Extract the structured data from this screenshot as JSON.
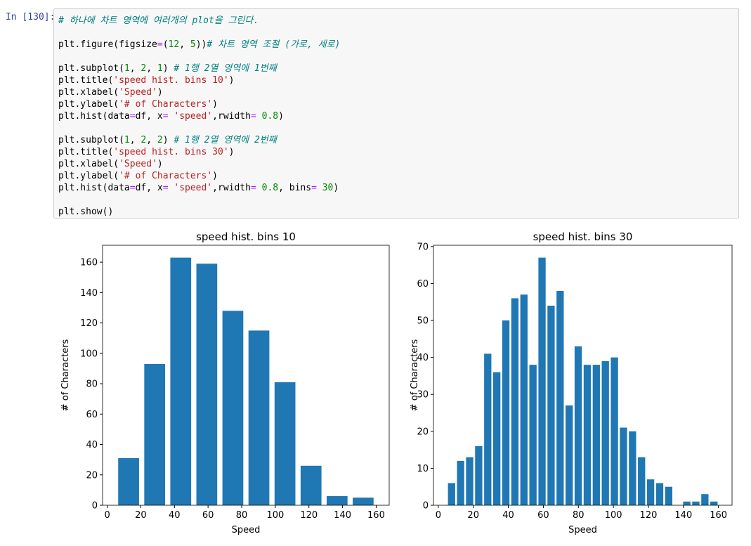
{
  "prompt": "In [130]:",
  "code": [
    [
      "# 하나에 차트 영역에 여러개의 plot을 그린다."
    ],
    [
      "plt.figure(figsize=(12, 5))# 차트 영역 조절 (가로, 세로)"
    ],
    [
      "plt.subplot(1, 2, 1) # 1행 2열 영역에 1번째",
      "plt.title('speed hist. bins 10')",
      "plt.xlabel('Speed')",
      "plt.ylabel('# of Characters')",
      "plt.hist(data=df, x= 'speed',rwidth= 0.8)"
    ],
    [
      "plt.subplot(1, 2, 2) # 1행 2열 영역에 2번째",
      "plt.title('speed hist. bins 30')",
      "plt.xlabel('Speed')",
      "plt.ylabel('# of Characters')",
      "plt.hist(data=df, x= 'speed',rwidth= 0.8, bins= 30)"
    ],
    [
      "plt.show()"
    ]
  ],
  "chart_data": [
    {
      "type": "histogram",
      "title": "speed hist. bins 10",
      "xlabel": "Speed",
      "ylabel": "# of Characters",
      "color": "#1f77b4",
      "bins": [
        5,
        20.5,
        36,
        51.5,
        67,
        82.5,
        98,
        113.5,
        129,
        144.5,
        160
      ],
      "values": [
        31,
        93,
        163,
        159,
        128,
        115,
        81,
        26,
        6,
        5
      ],
      "xlim": [
        -2.75,
        167.75
      ],
      "ylim": [
        0,
        171.15
      ],
      "xticks": [
        0,
        20,
        40,
        60,
        80,
        100,
        120,
        140,
        160
      ],
      "yticks": [
        0,
        20,
        40,
        60,
        80,
        100,
        120,
        140,
        160
      ]
    },
    {
      "type": "histogram",
      "title": "speed hist. bins 30",
      "xlabel": "Speed",
      "ylabel": "# of Characters",
      "color": "#1f77b4",
      "bins": [
        5,
        10.17,
        15.33,
        20.5,
        25.67,
        30.83,
        36,
        41.17,
        46.33,
        51.5,
        56.67,
        61.83,
        67,
        72.17,
        77.33,
        82.5,
        87.67,
        92.83,
        98,
        103.17,
        108.33,
        113.5,
        118.67,
        123.83,
        129,
        134.17,
        139.33,
        144.5,
        149.67,
        154.83,
        160
      ],
      "values": [
        6,
        12,
        13,
        16,
        41,
        36,
        50,
        56,
        57,
        38,
        67,
        54,
        58,
        27,
        43,
        38,
        38,
        39,
        40,
        21,
        20,
        13,
        7,
        6,
        5,
        0,
        1,
        1,
        3,
        1
      ],
      "xlim": [
        -2.75,
        167.75
      ],
      "ylim": [
        0,
        70.35
      ],
      "xticks": [
        0,
        20,
        40,
        60,
        80,
        100,
        120,
        140,
        160
      ],
      "yticks": [
        0,
        10,
        20,
        30,
        40,
        50,
        60,
        70
      ]
    }
  ]
}
